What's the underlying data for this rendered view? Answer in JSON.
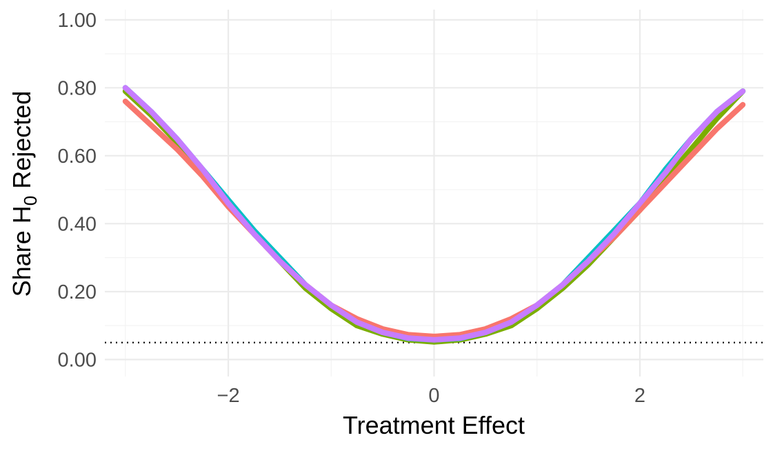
{
  "chart_data": {
    "type": "line",
    "xlabel": "Treatment Effect",
    "ylabel": {
      "prefix": "Share  H",
      "subscript": "0",
      "suffix": "  Rejected"
    },
    "xlim": [
      -3.2,
      3.2
    ],
    "ylim": [
      -0.05,
      1.03
    ],
    "x_ticks": [
      {
        "value": -2,
        "label": "−2"
      },
      {
        "value": 0,
        "label": "0"
      },
      {
        "value": 2,
        "label": "2"
      }
    ],
    "y_ticks": [
      {
        "value": 0.0,
        "label": "0.00"
      },
      {
        "value": 0.2,
        "label": "0.20"
      },
      {
        "value": 0.4,
        "label": "0.40"
      },
      {
        "value": 0.6,
        "label": "0.60"
      },
      {
        "value": 0.8,
        "label": "0.80"
      },
      {
        "value": 1.0,
        "label": "1.00"
      }
    ],
    "reference_line": {
      "y": 0.05,
      "style": "dotted",
      "color": "#000000"
    },
    "grid": true,
    "legend": "none",
    "series": [
      {
        "color": "#7CAE00",
        "x": [
          -3.0,
          -2.75,
          -2.5,
          -2.25,
          -2.0,
          -1.75,
          -1.5,
          -1.25,
          -1.0,
          -0.75,
          -0.5,
          -0.25,
          0.0,
          0.25,
          0.5,
          0.75,
          1.0,
          1.25,
          1.5,
          1.75,
          2.0,
          2.25,
          2.5,
          2.75,
          3.0
        ],
        "y": [
          0.79,
          0.72,
          0.64,
          0.55,
          0.46,
          0.37,
          0.29,
          0.21,
          0.15,
          0.1,
          0.075,
          0.058,
          0.052,
          0.058,
          0.075,
          0.1,
          0.15,
          0.21,
          0.28,
          0.36,
          0.44,
          0.53,
          0.62,
          0.71,
          0.79
        ]
      },
      {
        "color": "#00BFC4",
        "x": [
          -3.0,
          -2.75,
          -2.5,
          -2.25,
          -2.0,
          -1.75,
          -1.5,
          -1.25,
          -1.0,
          -0.75,
          -0.5,
          -0.25,
          0.0,
          0.25,
          0.5,
          0.75,
          1.0,
          1.25,
          1.5,
          1.75,
          2.0,
          2.25,
          2.5,
          2.75,
          3.0
        ],
        "y": [
          0.8,
          0.73,
          0.65,
          0.56,
          0.47,
          0.38,
          0.3,
          0.22,
          0.16,
          0.11,
          0.08,
          0.062,
          0.058,
          0.062,
          0.08,
          0.11,
          0.16,
          0.22,
          0.3,
          0.38,
          0.46,
          0.56,
          0.65,
          0.73,
          0.79
        ]
      },
      {
        "color": "#F8766D",
        "x": [
          -3.0,
          -2.75,
          -2.5,
          -2.25,
          -2.0,
          -1.75,
          -1.5,
          -1.25,
          -1.0,
          -0.75,
          -0.5,
          -0.25,
          0.0,
          0.25,
          0.5,
          0.75,
          1.0,
          1.25,
          1.5,
          1.75,
          2.0,
          2.25,
          2.5,
          2.75,
          3.0
        ],
        "y": [
          0.76,
          0.69,
          0.62,
          0.54,
          0.45,
          0.37,
          0.29,
          0.22,
          0.16,
          0.12,
          0.09,
          0.073,
          0.068,
          0.073,
          0.09,
          0.12,
          0.16,
          0.22,
          0.29,
          0.36,
          0.44,
          0.52,
          0.6,
          0.68,
          0.75
        ]
      },
      {
        "color": "#C77CFF",
        "x": [
          -3.0,
          -2.75,
          -2.5,
          -2.25,
          -2.0,
          -1.75,
          -1.5,
          -1.25,
          -1.0,
          -0.75,
          -0.5,
          -0.25,
          0.0,
          0.25,
          0.5,
          0.75,
          1.0,
          1.25,
          1.5,
          1.75,
          2.0,
          2.25,
          2.5,
          2.75,
          3.0
        ],
        "y": [
          0.8,
          0.73,
          0.65,
          0.56,
          0.46,
          0.37,
          0.29,
          0.22,
          0.16,
          0.11,
          0.08,
          0.063,
          0.058,
          0.063,
          0.08,
          0.11,
          0.16,
          0.22,
          0.29,
          0.37,
          0.46,
          0.55,
          0.65,
          0.73,
          0.79
        ]
      }
    ]
  }
}
